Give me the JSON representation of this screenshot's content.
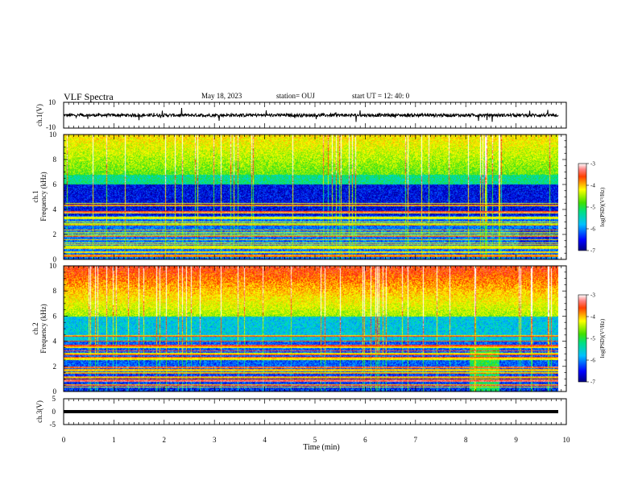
{
  "header": {
    "title": "VLF Spectra",
    "date": "May 18, 2023",
    "station": "station= OUJ",
    "start": "start  UT =   12: 40: 0"
  },
  "colors": {
    "colormap": [
      "#000080",
      "#0000e0",
      "#0060ff",
      "#00c0ff",
      "#00e0a0",
      "#20e020",
      "#a0f000",
      "#ffff00",
      "#ffa000",
      "#ff2000",
      "#ff8888",
      "#ffffff"
    ]
  },
  "chart_data": [
    {
      "type": "line",
      "panel": "ch1-waveform",
      "ylabel": "ch.1(V)",
      "ylim": [
        -10,
        10
      ],
      "yticks": [
        "10",
        "-10"
      ],
      "description_level": [
        0
      ],
      "baseline_v": 0
    },
    {
      "type": "heatmap",
      "panel": "ch1-spectrogram",
      "ylabel_line1": "ch.1",
      "ylabel_line2": "Frequency (kHz)",
      "ylim": [
        0,
        10
      ],
      "yticks": [
        "0",
        "2",
        "4",
        "6",
        "8",
        "10"
      ],
      "colorbar": {
        "label": "log(PSD)(V²/Hz)",
        "range": [
          -7,
          -3
        ],
        "ticks": [
          "-3",
          "-4",
          "-5",
          "-6",
          "-7"
        ]
      }
    },
    {
      "type": "heatmap",
      "panel": "ch2-spectrogram",
      "ylabel_line1": "ch.2",
      "ylabel_line2": "Frequency (kHz)",
      "ylim": [
        0,
        10
      ],
      "yticks": [
        "0",
        "2",
        "4",
        "6",
        "8",
        "10"
      ],
      "colorbar": {
        "label": "log(PSD)(V²/Hz)",
        "range": [
          -7,
          -3
        ],
        "ticks": [
          "-3",
          "-4",
          "-5",
          "-6",
          "-7"
        ]
      }
    },
    {
      "type": "line",
      "panel": "ch3-waveform",
      "ylabel": "ch.3(V)",
      "ylim": [
        -5,
        5
      ],
      "yticks": [
        "5",
        "0",
        "-5"
      ],
      "baseline_v": 0
    }
  ],
  "xaxis": {
    "label": "Time (min)",
    "xlim": [
      0,
      10
    ],
    "ticks": [
      "0",
      "1",
      "2",
      "3",
      "4",
      "5",
      "6",
      "7",
      "8",
      "9",
      "10"
    ]
  }
}
